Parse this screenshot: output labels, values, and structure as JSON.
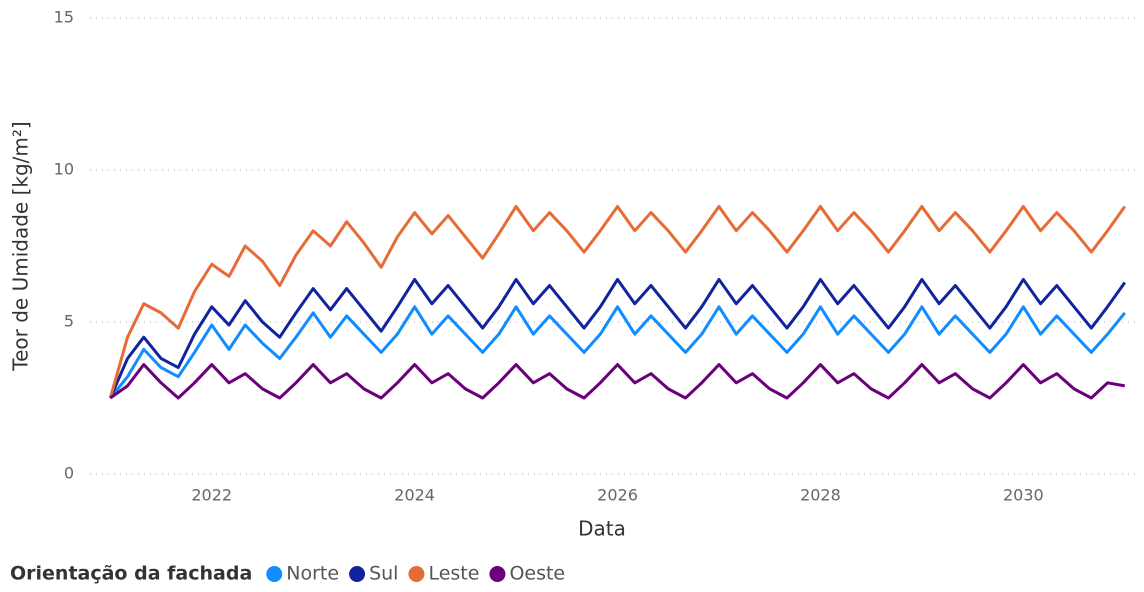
{
  "chart_data": {
    "type": "line",
    "x_label": "Data",
    "y_label": "Teor de Umidade [kg/m²]",
    "legend_title": "Orientação da fachada",
    "x": [
      2021,
      2021.17,
      2021.33,
      2021.5,
      2021.67,
      2021.83,
      2022,
      2022.17,
      2022.33,
      2022.5,
      2022.67,
      2022.83,
      2023,
      2023.17,
      2023.33,
      2023.5,
      2023.67,
      2023.83,
      2024,
      2024.17,
      2024.33,
      2024.5,
      2024.67,
      2024.83,
      2025,
      2025.17,
      2025.33,
      2025.5,
      2025.67,
      2025.83,
      2026,
      2026.17,
      2026.33,
      2026.5,
      2026.67,
      2026.83,
      2027,
      2027.17,
      2027.33,
      2027.5,
      2027.67,
      2027.83,
      2028,
      2028.17,
      2028.33,
      2028.5,
      2028.67,
      2028.83,
      2029,
      2029.17,
      2029.33,
      2029.5,
      2029.67,
      2029.83,
      2030,
      2030.17,
      2030.33,
      2030.5,
      2030.67,
      2030.83,
      2031
    ],
    "series": [
      {
        "name": "Norte",
        "color": "#118dff",
        "values": [
          2.5,
          3.2,
          4.1,
          3.5,
          3.2,
          4.0,
          4.9,
          4.1,
          4.9,
          4.3,
          3.8,
          4.5,
          5.3,
          4.5,
          5.2,
          4.6,
          4.0,
          4.6,
          5.5,
          4.6,
          5.2,
          4.6,
          4.0,
          4.6,
          5.5,
          4.6,
          5.2,
          4.6,
          4.0,
          4.6,
          5.5,
          4.6,
          5.2,
          4.6,
          4.0,
          4.6,
          5.5,
          4.6,
          5.2,
          4.6,
          4.0,
          4.6,
          5.5,
          4.6,
          5.2,
          4.6,
          4.0,
          4.6,
          5.5,
          4.6,
          5.2,
          4.6,
          4.0,
          4.6,
          5.5,
          4.6,
          5.2,
          4.6,
          4.0,
          4.6,
          5.3
        ]
      },
      {
        "name": "Sul",
        "color": "#12239e",
        "values": [
          2.5,
          3.8,
          4.5,
          3.8,
          3.5,
          4.6,
          5.5,
          4.9,
          5.7,
          5.0,
          4.5,
          5.3,
          6.1,
          5.4,
          6.1,
          5.4,
          4.7,
          5.5,
          6.4,
          5.6,
          6.2,
          5.5,
          4.8,
          5.5,
          6.4,
          5.6,
          6.2,
          5.5,
          4.8,
          5.5,
          6.4,
          5.6,
          6.2,
          5.5,
          4.8,
          5.5,
          6.4,
          5.6,
          6.2,
          5.5,
          4.8,
          5.5,
          6.4,
          5.6,
          6.2,
          5.5,
          4.8,
          5.5,
          6.4,
          5.6,
          6.2,
          5.5,
          4.8,
          5.5,
          6.4,
          5.6,
          6.2,
          5.5,
          4.8,
          5.5,
          6.3
        ]
      },
      {
        "name": "Leste",
        "color": "#e66c37",
        "values": [
          2.5,
          4.5,
          5.6,
          5.3,
          4.8,
          6.0,
          6.9,
          6.5,
          7.5,
          7.0,
          6.2,
          7.2,
          8.0,
          7.5,
          8.3,
          7.6,
          6.8,
          7.8,
          8.6,
          7.9,
          8.5,
          7.8,
          7.1,
          7.9,
          8.8,
          8.0,
          8.6,
          8.0,
          7.3,
          8.0,
          8.8,
          8.0,
          8.6,
          8.0,
          7.3,
          8.0,
          8.8,
          8.0,
          8.6,
          8.0,
          7.3,
          8.0,
          8.8,
          8.0,
          8.6,
          8.0,
          7.3,
          8.0,
          8.8,
          8.0,
          8.6,
          8.0,
          7.3,
          8.0,
          8.8,
          8.0,
          8.6,
          8.0,
          7.3,
          8.0,
          8.8
        ]
      },
      {
        "name": "Oeste",
        "color": "#6b007b",
        "values": [
          2.5,
          2.9,
          3.6,
          3.0,
          2.5,
          3.0,
          3.6,
          3.0,
          3.3,
          2.8,
          2.5,
          3.0,
          3.6,
          3.0,
          3.3,
          2.8,
          2.5,
          3.0,
          3.6,
          3.0,
          3.3,
          2.8,
          2.5,
          3.0,
          3.6,
          3.0,
          3.3,
          2.8,
          2.5,
          3.0,
          3.6,
          3.0,
          3.3,
          2.8,
          2.5,
          3.0,
          3.6,
          3.0,
          3.3,
          2.8,
          2.5,
          3.0,
          3.6,
          3.0,
          3.3,
          2.8,
          2.5,
          3.0,
          3.6,
          3.0,
          3.3,
          2.8,
          2.5,
          3.0,
          3.6,
          3.0,
          3.3,
          2.8,
          2.5,
          3.0,
          2.9
        ]
      }
    ],
    "xlim": [
      2020.8,
      2031.15
    ],
    "xticks": [
      2022,
      2024,
      2026,
      2028,
      2030
    ],
    "ylim": [
      0,
      15
    ],
    "yticks": [
      0,
      5,
      10,
      15
    ],
    "grid": true
  }
}
